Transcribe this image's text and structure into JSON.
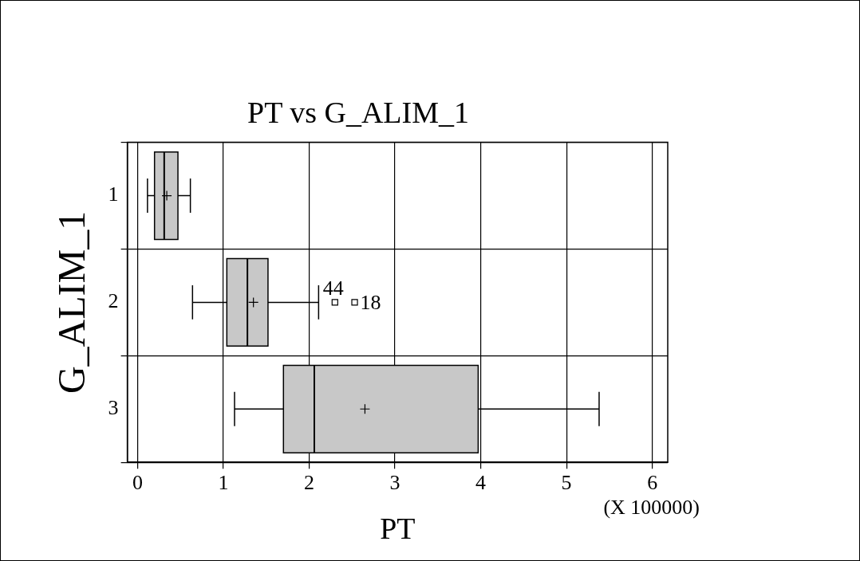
{
  "chart_data": {
    "type": "box",
    "title": "PT vs G_ALIM_1",
    "xlabel": "PT",
    "ylabel": "G_ALIM_1",
    "orientation": "horizontal",
    "color": "#c8c8c8",
    "categories": [
      "1",
      "2",
      "3"
    ],
    "boxes": [
      {
        "low": 0.115,
        "q1": 0.197,
        "median": 0.31,
        "q3": 0.47,
        "high": 0.615,
        "mean": 0.34
      },
      {
        "low": 0.64,
        "q1": 1.04,
        "median": 1.28,
        "q3": 1.52,
        "high": 2.11,
        "mean": 1.35,
        "outliers": [
          2.3,
          2.53
        ]
      },
      {
        "low": 1.13,
        "q1": 1.7,
        "median": 2.06,
        "q3": 3.97,
        "high": 5.38,
        "mean": 2.65
      }
    ],
    "xlim": [
      -0.12,
      6.18
    ],
    "xticks": [
      0,
      1,
      2,
      3,
      4,
      5,
      6
    ],
    "grid": true,
    "legend": false,
    "annotations": [
      "(X 100000)",
      "44",
      "18"
    ]
  }
}
